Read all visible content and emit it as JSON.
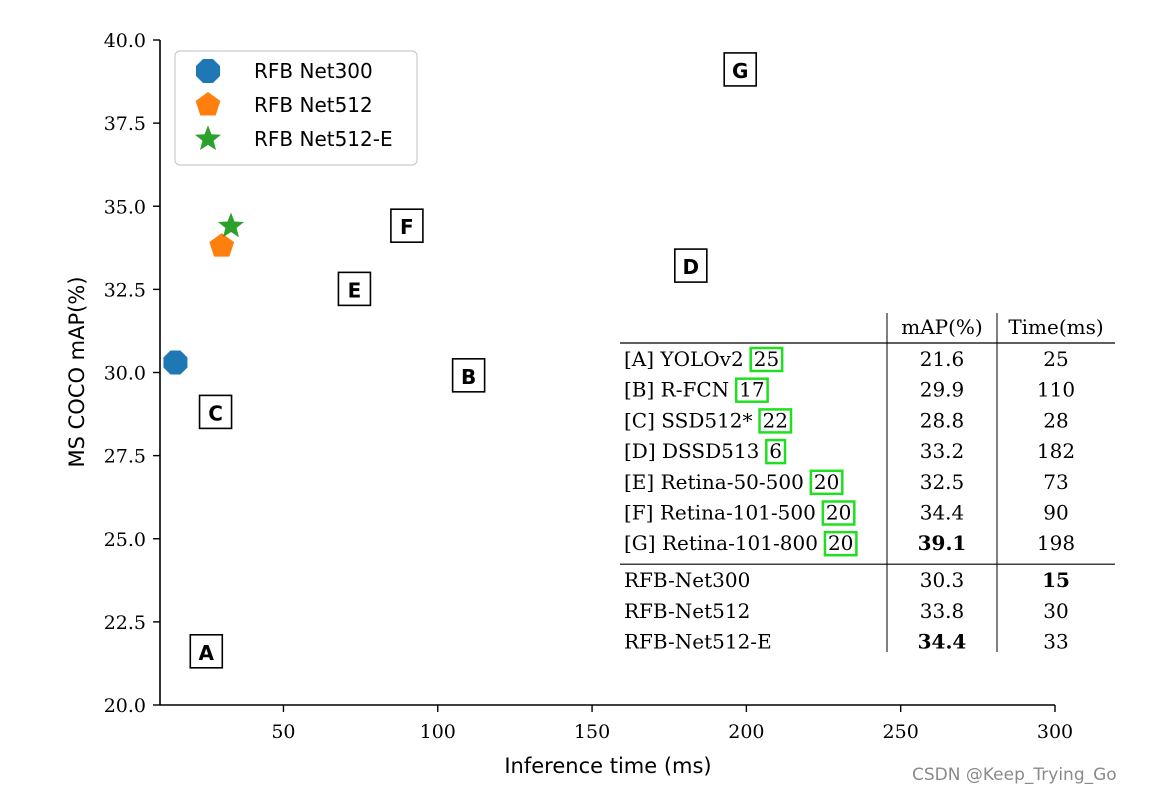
{
  "chart_data": {
    "type": "scatter",
    "xlabel": "Inference time (ms)",
    "ylabel": "MS COCO mAP(%)",
    "xlim": [
      10,
      300
    ],
    "ylim": [
      20,
      40
    ],
    "x_ticks": [
      "50",
      "100",
      "150",
      "200",
      "250",
      "300"
    ],
    "x_tick_values": [
      50,
      100,
      150,
      200,
      250,
      300
    ],
    "y_ticks": [
      "20.0",
      "22.5",
      "25.0",
      "27.5",
      "30.0",
      "32.5",
      "35.0",
      "37.5",
      "40.0"
    ],
    "y_tick_values": [
      20,
      22.5,
      25,
      27.5,
      30,
      32.5,
      35,
      37.5,
      40
    ],
    "grid": false,
    "legend_position": "top-left",
    "series": [
      {
        "name": "RFB Net300",
        "marker": "octagon",
        "color": "#1f77b4",
        "x": 15,
        "y": 30.3
      },
      {
        "name": "RFB Net512",
        "marker": "pentagon",
        "color": "#ff7f0e",
        "x": 30,
        "y": 33.8
      },
      {
        "name": "RFB Net512-E",
        "marker": "star",
        "color": "#2ca02c",
        "x": 33,
        "y": 34.4
      }
    ],
    "letter_points": [
      {
        "label": "A",
        "x": 25,
        "y": 21.6
      },
      {
        "label": "B",
        "x": 110,
        "y": 29.9
      },
      {
        "label": "C",
        "x": 28,
        "y": 28.8
      },
      {
        "label": "D",
        "x": 182,
        "y": 33.2
      },
      {
        "label": "E",
        "x": 73,
        "y": 32.5
      },
      {
        "label": "F",
        "x": 90,
        "y": 34.4
      },
      {
        "label": "G",
        "x": 198,
        "y": 39.1
      }
    ],
    "table": {
      "headers": [
        "mAP(%)",
        "Time(ms)"
      ],
      "rows": [
        {
          "name": "[A] YOLOv2",
          "cite": "25",
          "map": "21.6",
          "time": "25"
        },
        {
          "name": "[B] R-FCN",
          "cite": "17",
          "map": "29.9",
          "time": "110"
        },
        {
          "name": "[C] SSD512*",
          "cite": "22",
          "map": "28.8",
          "time": "28"
        },
        {
          "name": "[D] DSSD513",
          "cite": "6",
          "map": "33.2",
          "time": "182"
        },
        {
          "name": "[E] Retina-50-500",
          "cite": "20",
          "map": "32.5",
          "time": "73"
        },
        {
          "name": "[F] Retina-101-500",
          "cite": "20",
          "map": "34.4",
          "time": "90"
        },
        {
          "name": "[G] Retina-101-800",
          "cite": "20",
          "map": "39.1",
          "time": "198",
          "bold_map": true
        }
      ],
      "rfb_rows": [
        {
          "name": "RFB-Net300",
          "map": "30.3",
          "time": "15",
          "bold_time": true
        },
        {
          "name": "RFB-Net512",
          "map": "33.8",
          "time": "30"
        },
        {
          "name": "RFB-Net512-E",
          "map": "34.4",
          "time": "33",
          "bold_map": true
        }
      ]
    }
  },
  "watermark": "CSDN @Keep_Trying_Go"
}
